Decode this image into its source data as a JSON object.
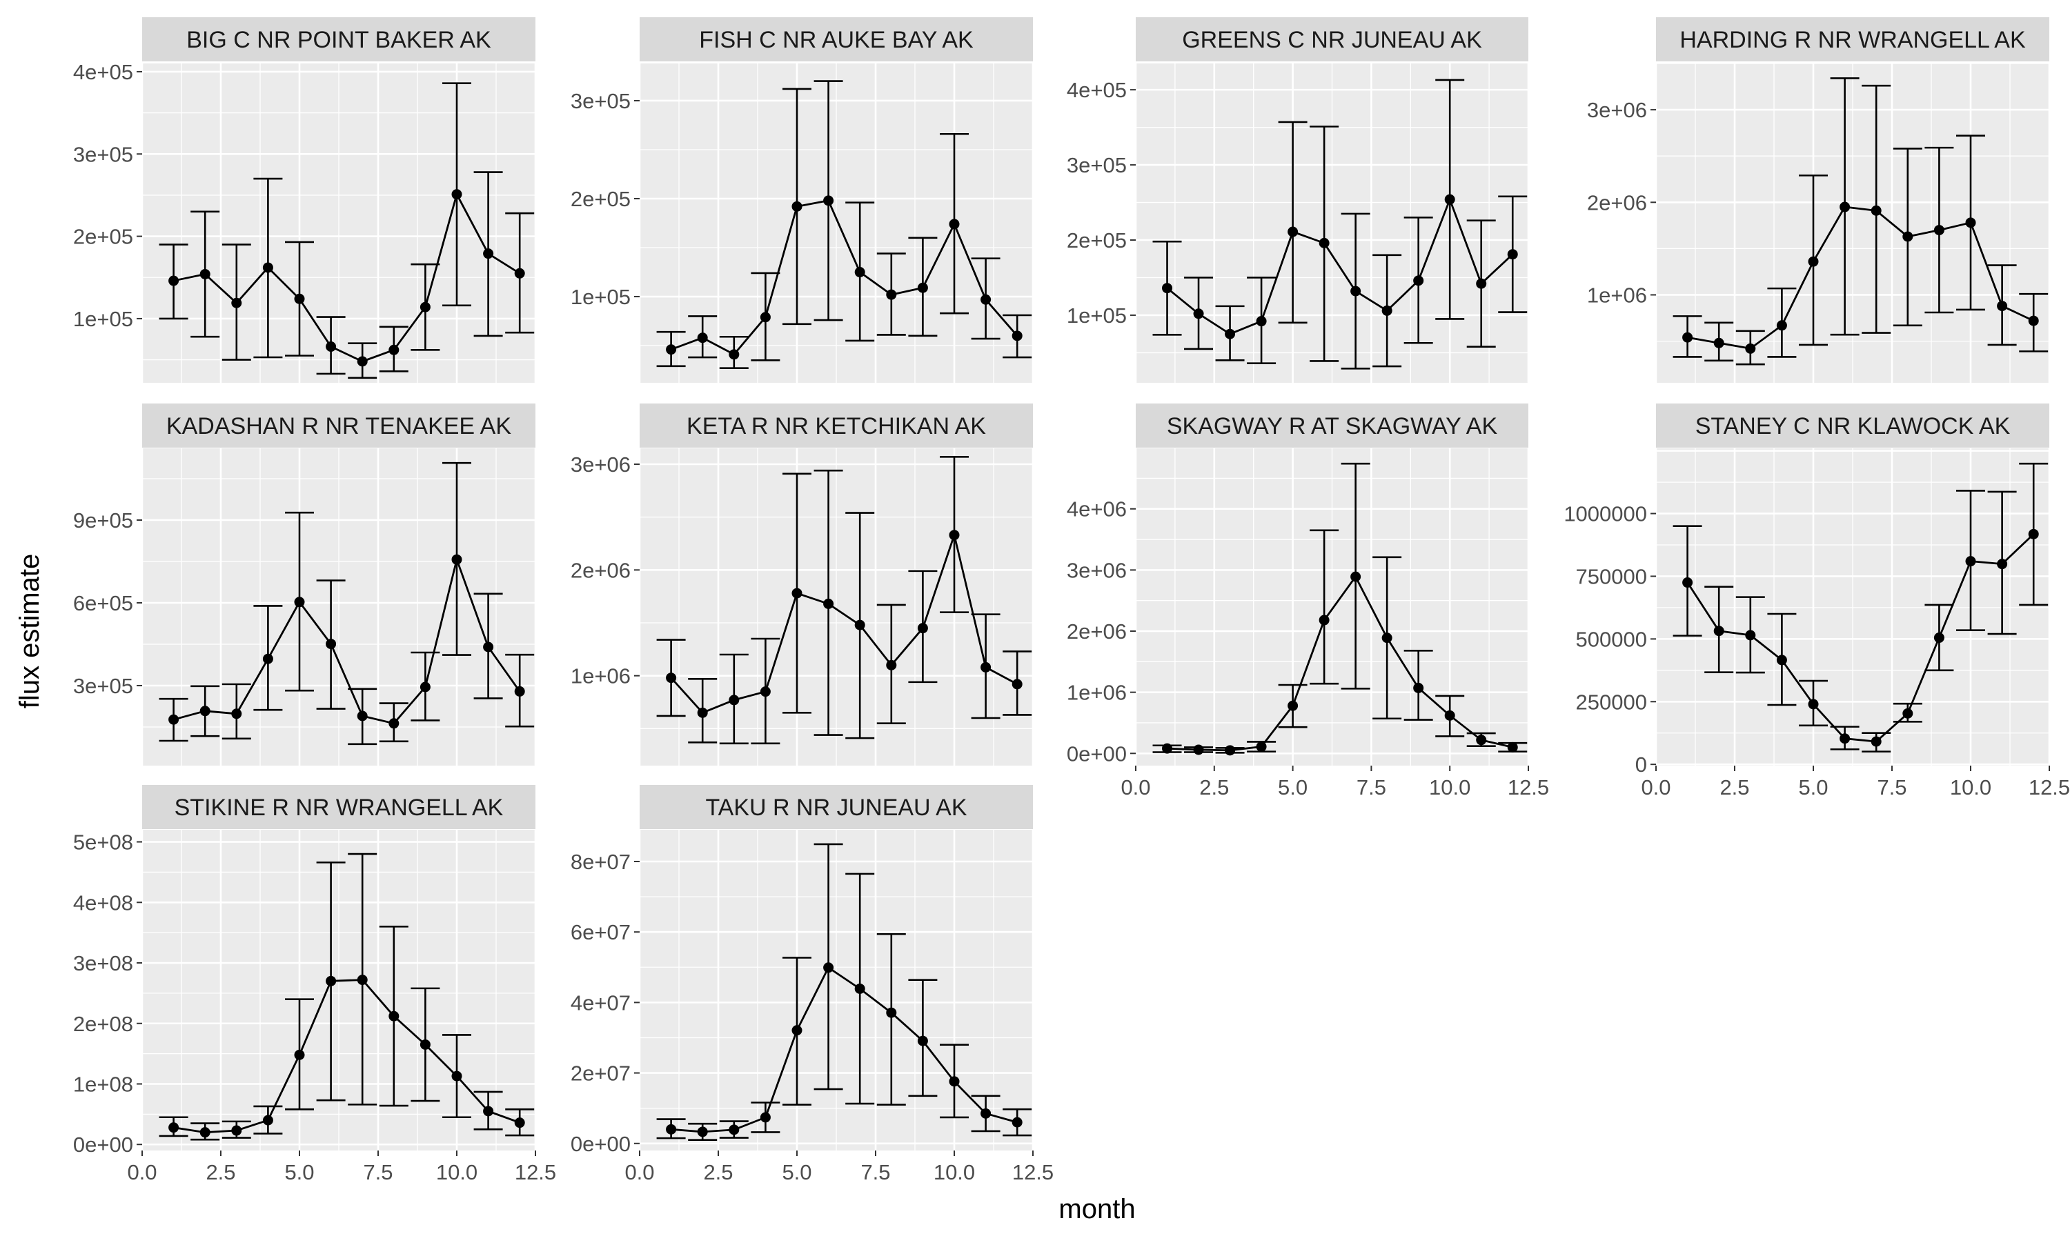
{
  "figure": {
    "xlabel": "month",
    "ylabel": "flux estimate"
  },
  "colors": {
    "panel_bg": "#ebebeb",
    "grid_major": "#ffffff",
    "strip_bg": "#d9d9d9",
    "mark": "#000000"
  },
  "chart_data": [
    {
      "type": "line",
      "title": "BIG C NR POINT BAKER AK",
      "x": [
        1,
        2,
        3,
        4,
        5,
        6,
        7,
        8,
        9,
        10,
        11,
        12
      ],
      "y": [
        146000,
        154000,
        119000,
        162000,
        124000,
        66000,
        48000,
        62000,
        114000,
        251000,
        179000,
        155000
      ],
      "ymin": [
        100000,
        78000,
        50000,
        53000,
        55000,
        33000,
        28000,
        36000,
        62000,
        116000,
        79000,
        83000
      ],
      "ymax": [
        190000,
        230000,
        190000,
        270000,
        193000,
        102000,
        70000,
        90000,
        166000,
        386000,
        278000,
        228000
      ],
      "xlim": [
        0,
        12.5
      ],
      "ylim": [
        22000,
        410000
      ],
      "xticks": [],
      "yticks": [
        100000,
        200000,
        300000,
        400000
      ],
      "ytick_labels": [
        "1e+05",
        "2e+05",
        "3e+05",
        "4e+05"
      ]
    },
    {
      "type": "line",
      "title": "FISH C NR AUKE BAY AK",
      "x": [
        1,
        2,
        3,
        4,
        5,
        6,
        7,
        8,
        9,
        10,
        11,
        12
      ],
      "y": [
        46000,
        58000,
        41000,
        79000,
        192000,
        198000,
        125000,
        102000,
        109000,
        174000,
        97000,
        60000
      ],
      "ymin": [
        29000,
        38000,
        27000,
        35000,
        72000,
        76000,
        55000,
        61000,
        60000,
        83000,
        57000,
        38000
      ],
      "ymax": [
        64000,
        80000,
        59000,
        124000,
        312000,
        320000,
        196000,
        144000,
        160000,
        266000,
        139000,
        81000
      ],
      "xlim": [
        0,
        12.5
      ],
      "ylim": [
        12000,
        338000
      ],
      "xticks": [],
      "yticks": [
        100000,
        200000,
        300000
      ],
      "ytick_labels": [
        "1e+05",
        "2e+05",
        "3e+05"
      ]
    },
    {
      "type": "line",
      "title": "GREENS C NR JUNEAU AK",
      "x": [
        1,
        2,
        3,
        4,
        5,
        6,
        7,
        8,
        9,
        10,
        11,
        12
      ],
      "y": [
        136000,
        102000,
        75000,
        92000,
        211000,
        196000,
        132000,
        106000,
        146000,
        254000,
        142000,
        181000
      ],
      "ymin": [
        74000,
        55000,
        40000,
        36000,
        90000,
        39000,
        29000,
        32000,
        63000,
        95000,
        58000,
        104000
      ],
      "ymax": [
        198000,
        150000,
        112000,
        150000,
        357000,
        351000,
        235000,
        180000,
        230000,
        413000,
        226000,
        258000
      ],
      "xlim": [
        0,
        12.5
      ],
      "ylim": [
        10000,
        435000
      ],
      "xticks": [],
      "yticks": [
        100000,
        200000,
        300000,
        400000
      ],
      "ytick_labels": [
        "1e+05",
        "2e+05",
        "3e+05",
        "4e+05"
      ]
    },
    {
      "type": "line",
      "title": "HARDING R NR WRANGELL AK",
      "x": [
        1,
        2,
        3,
        4,
        5,
        6,
        7,
        8,
        9,
        10,
        11,
        12
      ],
      "y": [
        540000,
        480000,
        420000,
        670000,
        1360000,
        1950000,
        1910000,
        1630000,
        1700000,
        1780000,
        880000,
        720000
      ],
      "ymin": [
        330000,
        290000,
        250000,
        330000,
        460000,
        570000,
        590000,
        670000,
        810000,
        840000,
        460000,
        390000
      ],
      "ymax": [
        770000,
        700000,
        610000,
        1070000,
        2290000,
        3340000,
        3260000,
        2580000,
        2590000,
        2720000,
        1320000,
        1010000
      ],
      "xlim": [
        0,
        12.5
      ],
      "ylim": [
        50000,
        3500000
      ],
      "xticks": [],
      "yticks": [
        1000000,
        2000000,
        3000000
      ],
      "ytick_labels": [
        "1e+06",
        "2e+06",
        "3e+06"
      ]
    },
    {
      "type": "line",
      "title": "KADASHAN R NR TENAKEE AK",
      "x": [
        1,
        2,
        3,
        4,
        5,
        6,
        7,
        8,
        9,
        10,
        11,
        12
      ],
      "y": [
        177000,
        208000,
        198000,
        397000,
        603000,
        451000,
        190000,
        163000,
        295000,
        757000,
        440000,
        279000
      ],
      "ymin": [
        100000,
        117000,
        108000,
        212000,
        282000,
        216000,
        88000,
        98000,
        174000,
        411000,
        254000,
        152000
      ],
      "ymax": [
        252000,
        298000,
        305000,
        589000,
        927000,
        681000,
        288000,
        236000,
        420000,
        1107000,
        633000,
        412000
      ],
      "xlim": [
        0,
        12.5
      ],
      "ylim": [
        10000,
        1160000
      ],
      "xticks": [],
      "yticks": [
        300000,
        600000,
        900000
      ],
      "ytick_labels": [
        "3e+05",
        "6e+05",
        "9e+05"
      ]
    },
    {
      "type": "line",
      "title": "KETA R NR KETCHIKAN AK",
      "x": [
        1,
        2,
        3,
        4,
        5,
        6,
        7,
        8,
        9,
        10,
        11,
        12
      ],
      "y": [
        980000,
        650000,
        770000,
        850000,
        1780000,
        1680000,
        1480000,
        1100000,
        1450000,
        2330000,
        1080000,
        920000
      ],
      "ymin": [
        620000,
        370000,
        360000,
        360000,
        650000,
        440000,
        410000,
        550000,
        940000,
        1600000,
        600000,
        630000
      ],
      "ymax": [
        1340000,
        970000,
        1200000,
        1350000,
        2910000,
        2940000,
        2540000,
        1670000,
        1990000,
        3070000,
        1580000,
        1230000
      ],
      "xlim": [
        0,
        12.5
      ],
      "ylim": [
        150000,
        3150000
      ],
      "xticks": [],
      "yticks": [
        1000000,
        2000000,
        3000000
      ],
      "ytick_labels": [
        "1e+06",
        "2e+06",
        "3e+06"
      ]
    },
    {
      "type": "line",
      "title": "SKAGWAY R AT SKAGWAY AK",
      "x": [
        1,
        2,
        3,
        4,
        5,
        6,
        7,
        8,
        9,
        10,
        11,
        12
      ],
      "y": [
        80000,
        60000,
        50000,
        110000,
        780000,
        2180000,
        2890000,
        1890000,
        1070000,
        620000,
        220000,
        100000
      ],
      "ymin": [
        20000,
        20000,
        10000,
        30000,
        430000,
        1140000,
        1060000,
        570000,
        550000,
        280000,
        120000,
        30000
      ],
      "ymax": [
        130000,
        100000,
        90000,
        190000,
        1120000,
        3650000,
        4740000,
        3210000,
        1680000,
        940000,
        330000,
        170000
      ],
      "xlim": [
        0,
        12.5
      ],
      "ylim": [
        -200000,
        4990000
      ],
      "xticks": [
        0,
        2.5,
        5,
        7.5,
        10,
        12.5
      ],
      "xtick_labels": [
        "0.0",
        "2.5",
        "5.0",
        "7.5",
        "10.0",
        "12.5"
      ],
      "yticks": [
        0,
        1000000,
        2000000,
        3000000,
        4000000
      ],
      "ytick_labels": [
        "0e+00",
        "1e+06",
        "2e+06",
        "3e+06",
        "4e+06"
      ]
    },
    {
      "type": "line",
      "title": "STANEY C NR KLAWOCK AK",
      "x": [
        1,
        2,
        3,
        4,
        5,
        6,
        7,
        8,
        9,
        10,
        11,
        12
      ],
      "y": [
        725000,
        532000,
        515000,
        416000,
        240000,
        103000,
        91000,
        203000,
        505000,
        810000,
        799000,
        918000
      ],
      "ymin": [
        513000,
        367000,
        366000,
        237000,
        155000,
        60000,
        51000,
        170000,
        375000,
        535000,
        520000,
        636000
      ],
      "ymax": [
        950000,
        708000,
        667000,
        600000,
        333000,
        150000,
        125000,
        242000,
        636000,
        1091000,
        1087000,
        1199000
      ],
      "xlim": [
        0,
        12.5
      ],
      "ylim": [
        -5000,
        1260000
      ],
      "xticks": [
        0,
        2.5,
        5,
        7.5,
        10,
        12.5
      ],
      "xtick_labels": [
        "0.0",
        "2.5",
        "5.0",
        "7.5",
        "10.0",
        "12.5"
      ],
      "yticks": [
        0,
        250000,
        500000,
        750000,
        1000000
      ],
      "ytick_labels": [
        "0",
        "250000",
        "500000",
        "750000",
        "1000000"
      ]
    },
    {
      "type": "line",
      "title": "STIKINE R NR WRANGELL AK",
      "x": [
        1,
        2,
        3,
        4,
        5,
        6,
        7,
        8,
        9,
        10,
        11,
        12
      ],
      "y": [
        28000000,
        20000000,
        23000000,
        40000000,
        148000000,
        270000000,
        272000000,
        212000000,
        165000000,
        113000000,
        55000000,
        36000000
      ],
      "ymin": [
        14000000,
        8000000,
        11000000,
        18000000,
        58000000,
        73000000,
        66000000,
        64000000,
        72000000,
        45000000,
        25000000,
        15000000
      ],
      "ymax": [
        45000000,
        35000000,
        38000000,
        63000000,
        240000000,
        466000000,
        480000000,
        360000000,
        258000000,
        181000000,
        87000000,
        58000000
      ],
      "xlim": [
        0,
        12.5
      ],
      "ylim": [
        -10000000,
        520000000
      ],
      "xticks": [
        0,
        2.5,
        5,
        7.5,
        10,
        12.5
      ],
      "xtick_labels": [
        "0.0",
        "2.5",
        "5.0",
        "7.5",
        "10.0",
        "12.5"
      ],
      "yticks": [
        0,
        100000000,
        200000000,
        300000000,
        400000000,
        500000000
      ],
      "ytick_labels": [
        "0e+00",
        "1e+08",
        "2e+08",
        "3e+08",
        "4e+08",
        "5e+08"
      ]
    },
    {
      "type": "line",
      "title": "TAKU R NR JUNEAU AK",
      "x": [
        1,
        2,
        3,
        4,
        5,
        6,
        7,
        8,
        9,
        10,
        11,
        12
      ],
      "y": [
        4000000,
        3300000,
        3900000,
        7400000,
        32100000,
        49900000,
        43900000,
        37100000,
        29100000,
        17600000,
        8500000,
        6000000
      ],
      "ymin": [
        1500000,
        1000000,
        1600000,
        3200000,
        11000000,
        15400000,
        11300000,
        11000000,
        13500000,
        7400000,
        3500000,
        2300000
      ],
      "ymax": [
        6900000,
        5600000,
        6300000,
        11600000,
        52700000,
        84900000,
        76500000,
        59400000,
        46400000,
        28000000,
        13500000,
        9700000
      ],
      "xlim": [
        0,
        12.5
      ],
      "ylim": [
        -2000000,
        89000000
      ],
      "xticks": [
        0,
        2.5,
        5,
        7.5,
        10,
        12.5
      ],
      "xtick_labels": [
        "0.0",
        "2.5",
        "5.0",
        "7.5",
        "10.0",
        "12.5"
      ],
      "yticks": [
        0,
        20000000,
        40000000,
        60000000,
        80000000
      ],
      "ytick_labels": [
        "0e+00",
        "2e+07",
        "4e+07",
        "6e+07",
        "8e+07"
      ]
    }
  ]
}
